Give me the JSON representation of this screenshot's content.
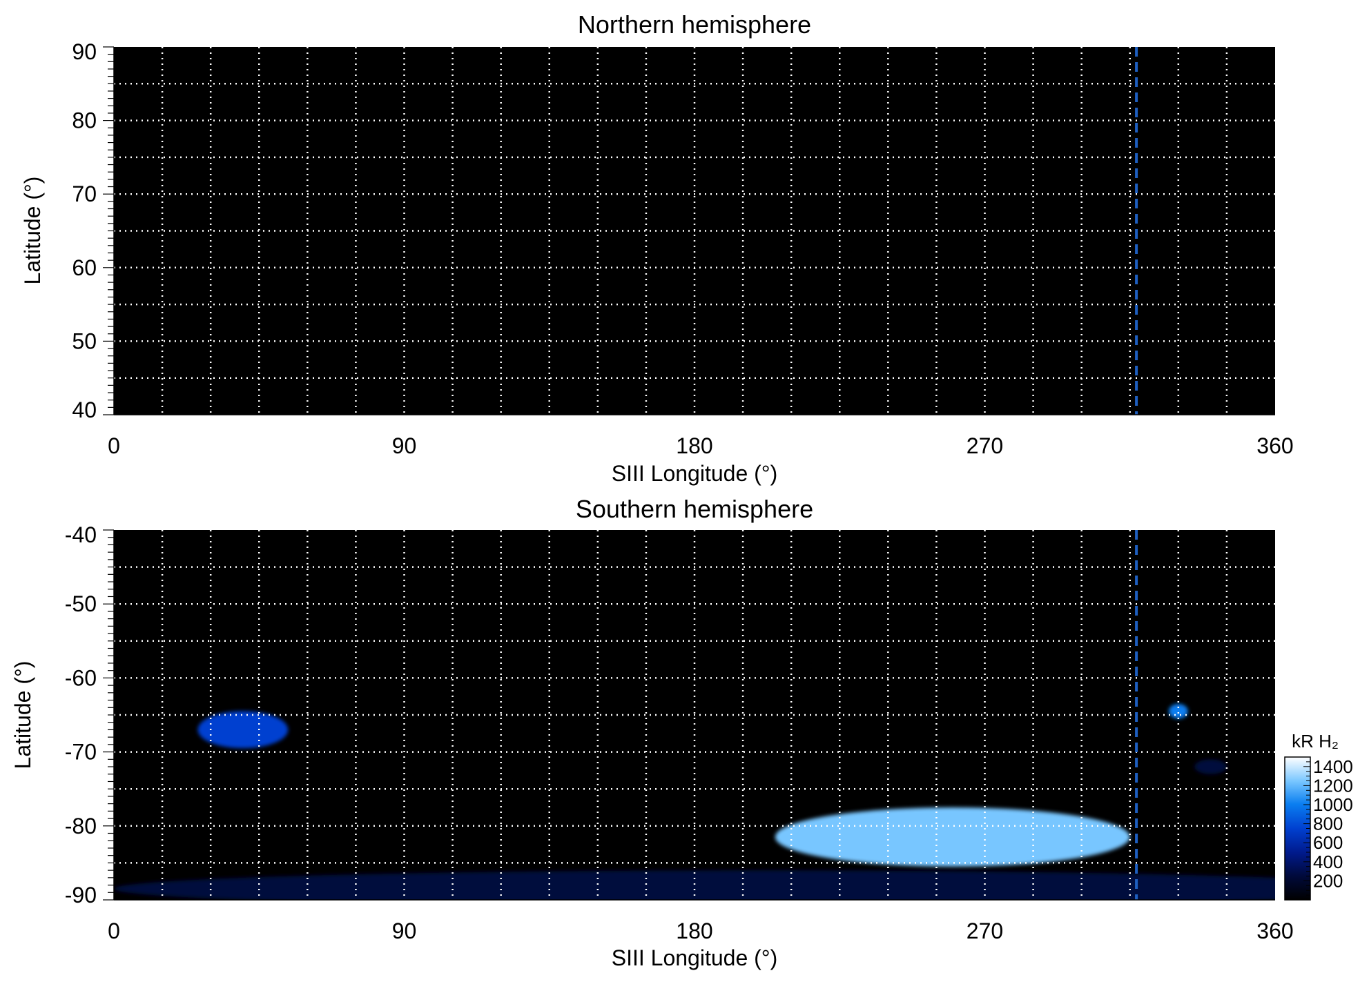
{
  "chart_data": [
    {
      "type": "heatmap",
      "title": "Northern hemisphere",
      "xlabel": "SIII Longitude (°)",
      "ylabel": "Latitude (°)",
      "xlim": [
        0,
        360
      ],
      "ylim": [
        40,
        90
      ],
      "xticks": [
        0,
        90,
        180,
        270,
        360
      ],
      "xtick_labels": [
        "0",
        "90",
        "180",
        "270",
        "360"
      ],
      "yticks": [
        40,
        50,
        60,
        70,
        80,
        90
      ],
      "ytick_labels": [
        "40",
        "50",
        "60",
        "70",
        "80",
        "90"
      ],
      "grid": true,
      "grid_x_step": 15,
      "grid_y_step": 5,
      "reference_line": {
        "longitude": 317,
        "style": "dashed",
        "color": "#1e5fc0"
      },
      "emission_regions": []
    },
    {
      "type": "heatmap",
      "title": "Southern hemisphere",
      "xlabel": "SIII Longitude (°)",
      "ylabel": "Latitude (°)",
      "xlim": [
        0,
        360
      ],
      "ylim": [
        -90,
        -40
      ],
      "xticks": [
        0,
        90,
        180,
        270,
        360
      ],
      "xtick_labels": [
        "0",
        "90",
        "180",
        "270",
        "360"
      ],
      "yticks": [
        -90,
        -80,
        -70,
        -60,
        -50,
        -40
      ],
      "ytick_labels": [
        "-90",
        "-80",
        "-70",
        "-60",
        "-50",
        "-40"
      ],
      "grid": true,
      "grid_x_step": 15,
      "grid_y_step": 5,
      "reference_line": {
        "longitude": 317,
        "style": "dashed",
        "color": "#1e5fc0"
      },
      "emission_regions": [
        {
          "lon": 200,
          "lat": -88.5,
          "lon_halfwidth": 200,
          "lat_halfwidth": 2.5,
          "intensity": 300
        },
        {
          "lon": 40,
          "lat": -67,
          "lon_halfwidth": 14,
          "lat_halfwidth": 2.5,
          "intensity": 700
        },
        {
          "lon": 260,
          "lat": -81.5,
          "lon_halfwidth": 55,
          "lat_halfwidth": 4,
          "intensity": 1300
        },
        {
          "lon": 330,
          "lat": -64.5,
          "lon_halfwidth": 3,
          "lat_halfwidth": 1,
          "intensity": 900
        },
        {
          "lon": 340,
          "lat": -72,
          "lon_halfwidth": 5,
          "lat_halfwidth": 1,
          "intensity": 350
        }
      ],
      "colorbar": {
        "label": "kR H₂",
        "min": 0,
        "max": 1500,
        "ticks": [
          200,
          400,
          600,
          800,
          1000,
          1200,
          1400
        ],
        "tick_labels": [
          "200",
          "400",
          "600",
          "800",
          "1000",
          "1200",
          "1400"
        ],
        "colors": [
          "#000000",
          "#000a3c",
          "#001a8c",
          "#0040d0",
          "#0a7ef0",
          "#78c6ff",
          "#ffffff"
        ]
      }
    }
  ]
}
